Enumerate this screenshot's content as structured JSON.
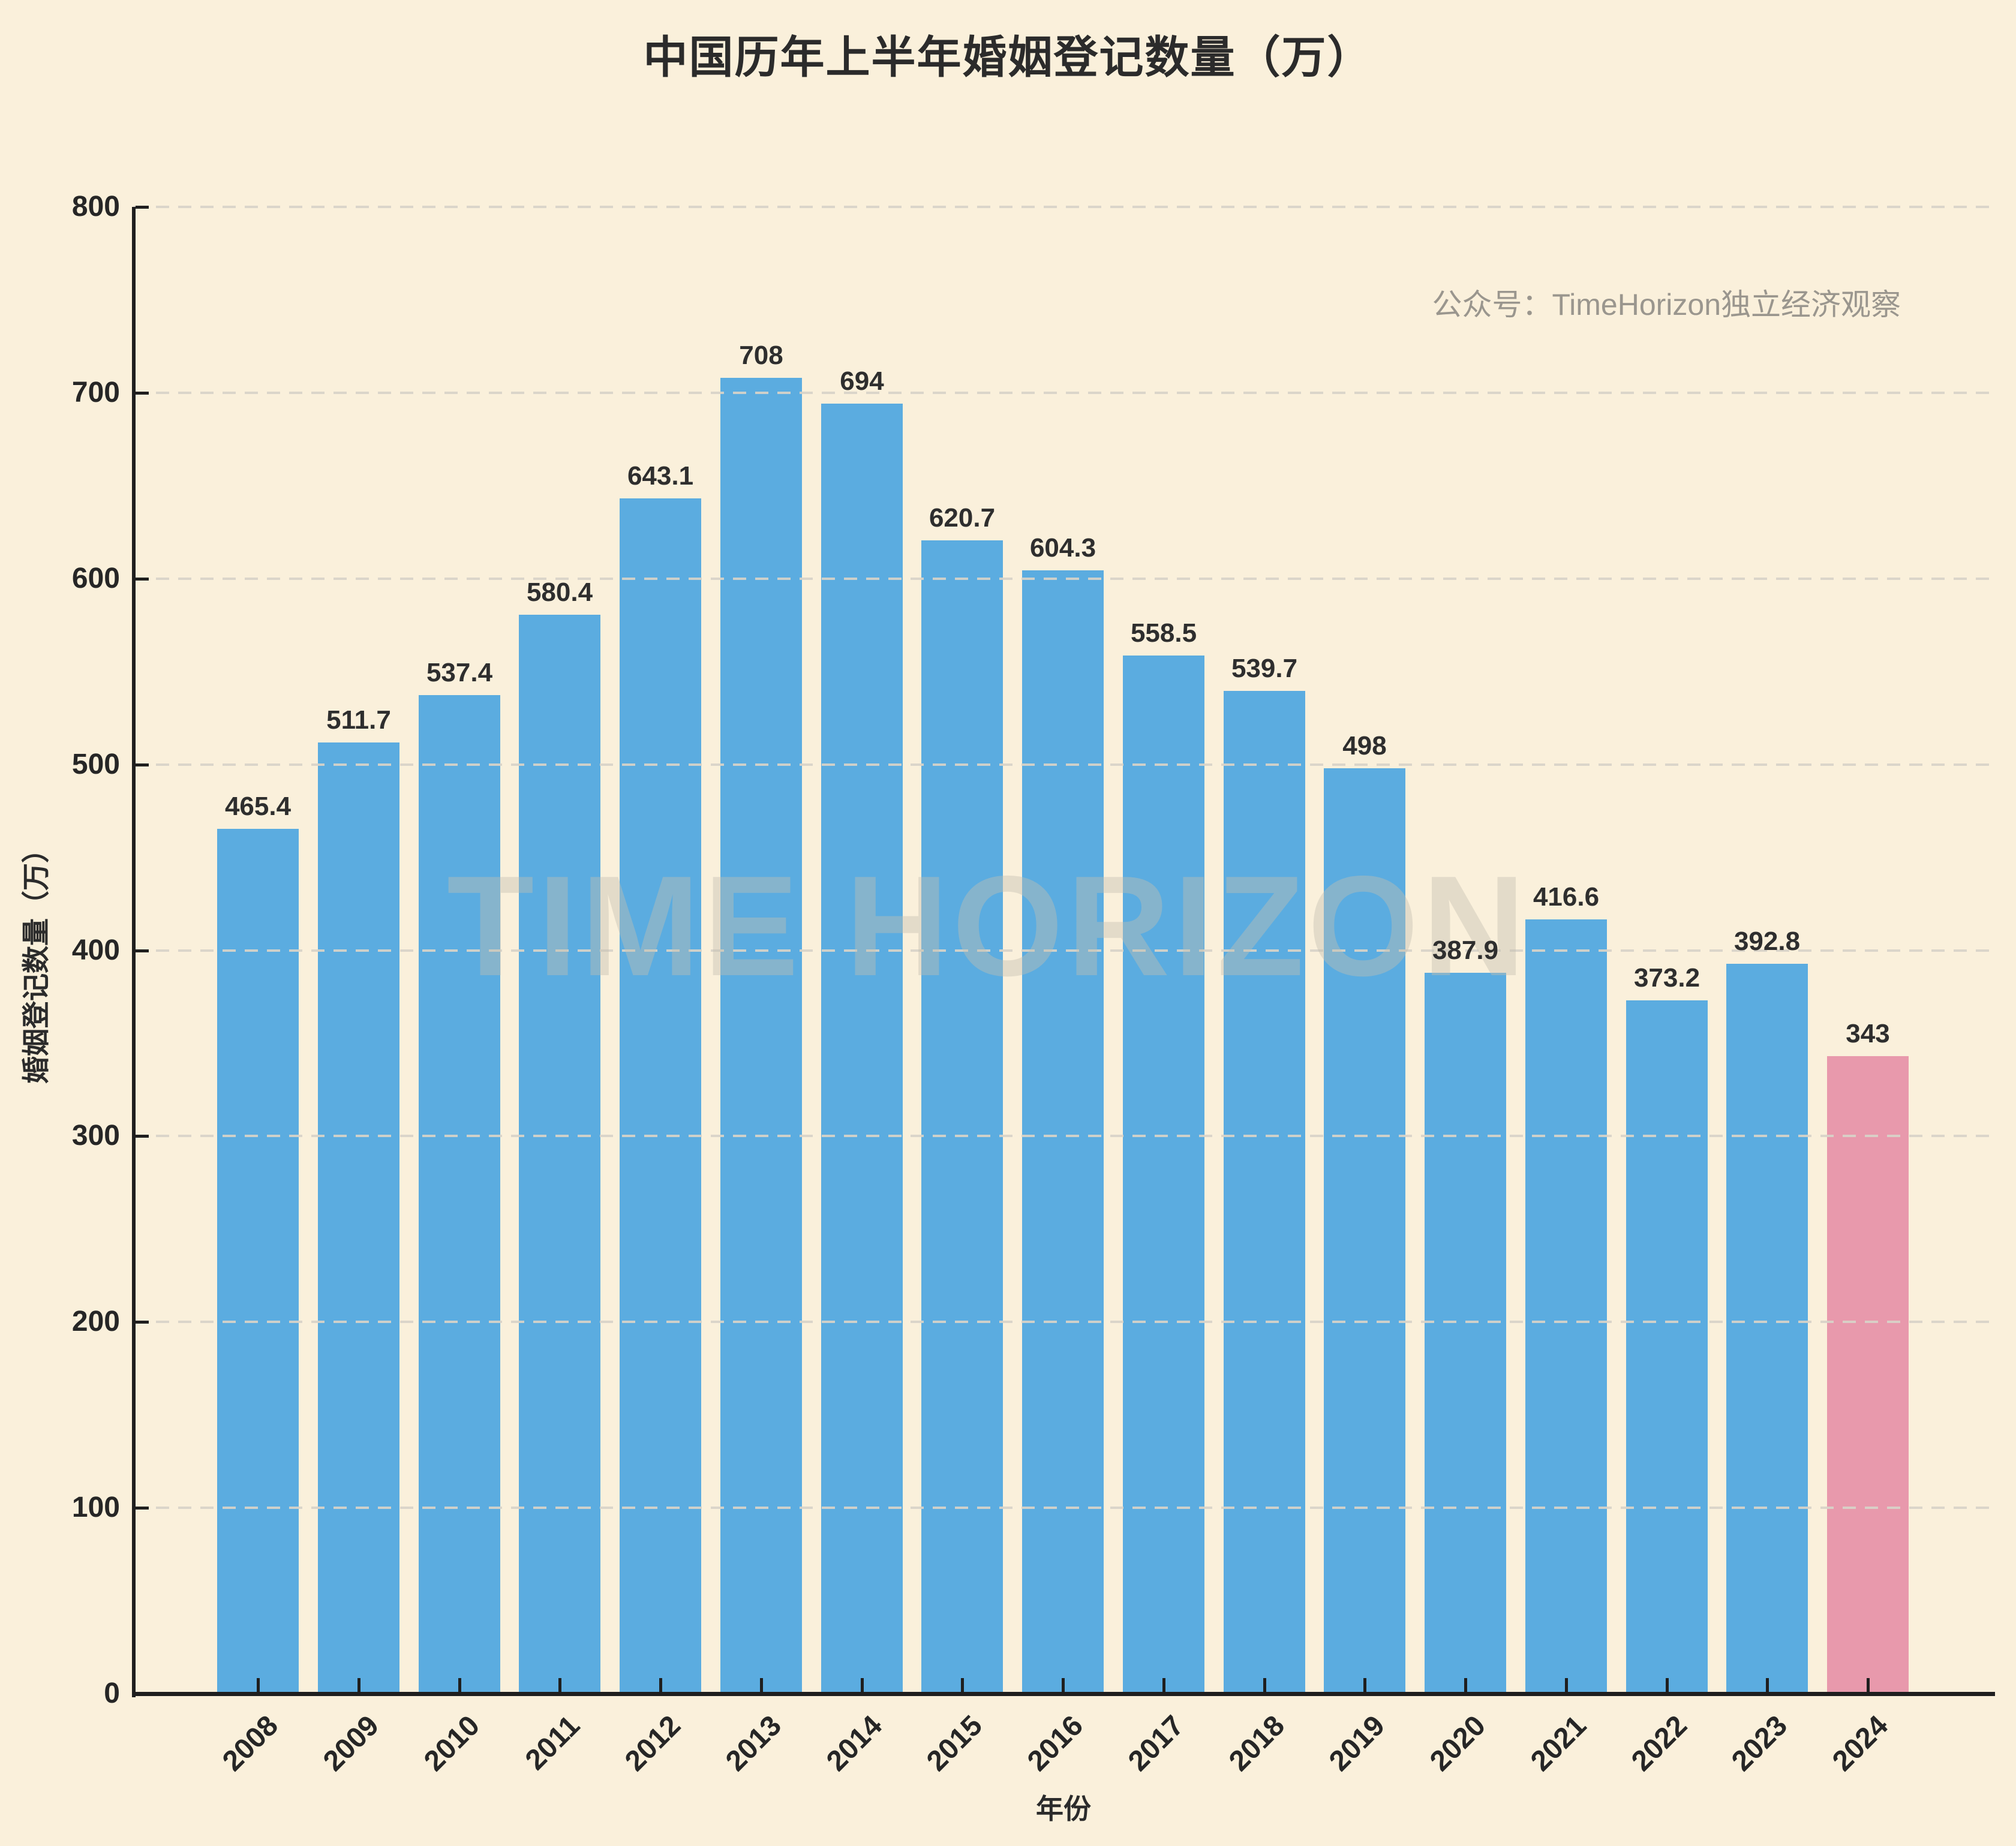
{
  "title": "中国历年上半年婚姻登记数量（万）",
  "annotation": "公众号：TimeHorizon独立经济观察",
  "watermark": "TIME HORIZON",
  "colors": {
    "background": "#FAF0DB",
    "bar": "#5BACE0",
    "bar_highlight": "#E899AC",
    "axis": "#1F1F1F",
    "grid": "#D8D3C8",
    "text": "#2B2B2B",
    "annotation_text": "#9A968E"
  },
  "chart_data": {
    "type": "bar",
    "title": "中国历年上半年婚姻登记数量（万）",
    "xlabel": "年份",
    "ylabel": "婚姻登记数量（万）",
    "ylim": [
      0,
      800
    ],
    "yticks": [
      0,
      100,
      200,
      300,
      400,
      500,
      600,
      700,
      800
    ],
    "grid": true,
    "legend": "none",
    "categories": [
      "2008",
      "2009",
      "2010",
      "2011",
      "2012",
      "2013",
      "2014",
      "2015",
      "2016",
      "2017",
      "2018",
      "2019",
      "2020",
      "2021",
      "2022",
      "2023",
      "2024"
    ],
    "values": [
      465.4,
      511.7,
      537.4,
      580.4,
      643.1,
      708,
      694,
      620.7,
      604.3,
      558.5,
      539.7,
      498,
      387.9,
      416.6,
      373.2,
      392.8,
      343
    ],
    "highlight_category": "2024"
  }
}
